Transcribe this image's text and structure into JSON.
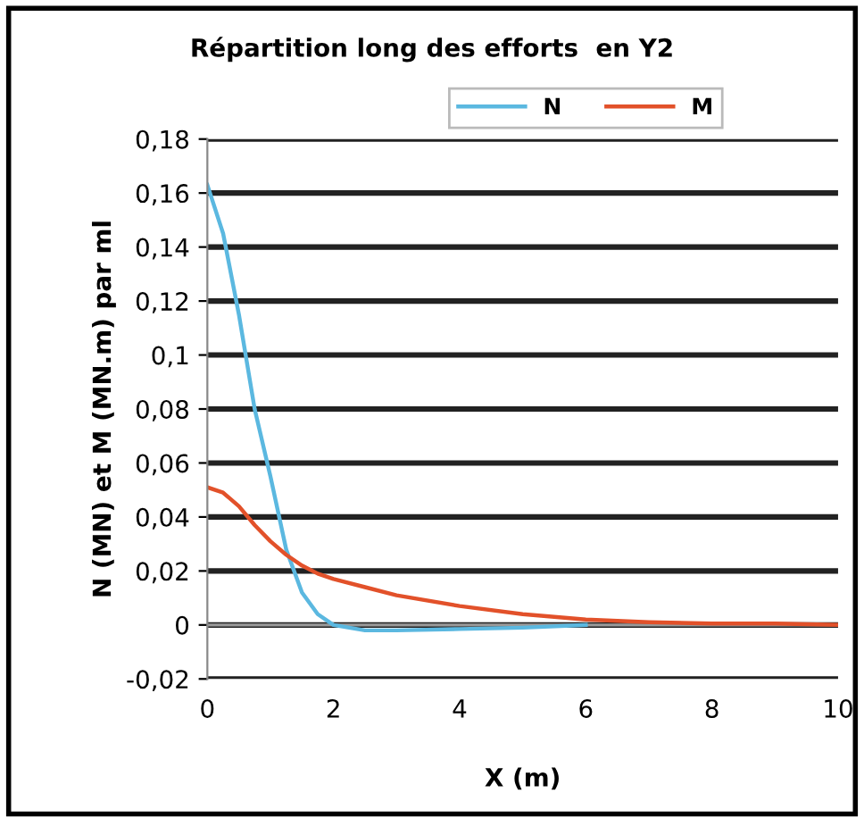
{
  "chart_data": {
    "type": "line",
    "title": "Répartition long des efforts  en Y2",
    "xlabel": "X (m)",
    "ylabel": "N (MN) et M (MN.m) par ml",
    "series": [
      {
        "name": "N",
        "color": "#5bb8e0",
        "x": [
          0,
          0.25,
          0.5,
          0.75,
          1.0,
          1.25,
          1.5,
          1.75,
          2.0,
          2.5,
          3,
          4,
          5,
          6
        ],
        "values": [
          0.163,
          0.145,
          0.115,
          0.08,
          0.055,
          0.028,
          0.012,
          0.004,
          0.0,
          -0.002,
          -0.002,
          -0.0015,
          -0.001,
          0
        ]
      },
      {
        "name": "M",
        "color": "#e2512a",
        "x": [
          0,
          0.25,
          0.5,
          0.75,
          1.0,
          1.25,
          1.5,
          1.75,
          2,
          2.5,
          3,
          4,
          5,
          6,
          7,
          8,
          9,
          10
        ],
        "values": [
          0.051,
          0.049,
          0.044,
          0.037,
          0.031,
          0.026,
          0.022,
          0.019,
          0.017,
          0.014,
          0.011,
          0.007,
          0.004,
          0.002,
          0.001,
          0.0005,
          0.0005,
          0
        ]
      }
    ],
    "xlim": [
      0,
      10
    ],
    "xticks": [
      0,
      2,
      4,
      6,
      8,
      10
    ],
    "ylim": [
      -0.02,
      0.18
    ],
    "yticks": [
      {
        "value": -0.02,
        "label": "-0,02"
      },
      0,
      {
        "value": 0.02,
        "label": "0,02"
      },
      {
        "value": 0.04,
        "label": "0,04"
      },
      {
        "value": 0.06,
        "label": "0,06"
      },
      {
        "value": 0.08,
        "label": "0,08"
      },
      {
        "value": 0.1,
        "label": "0,1"
      },
      {
        "value": 0.12,
        "label": "0,12"
      },
      {
        "value": 0.14,
        "label": "0,14"
      },
      {
        "value": 0.16,
        "label": "0,16"
      },
      {
        "value": 0.18,
        "label": "0,18"
      }
    ],
    "grid": "y",
    "legend": "top",
    "marker": "none",
    "line_style": "solid"
  }
}
